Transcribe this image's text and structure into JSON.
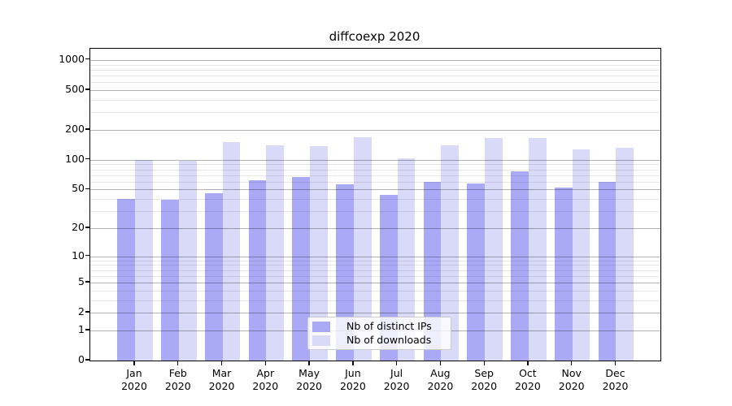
{
  "chart_data": {
    "type": "bar",
    "title": "diffcoexp 2020",
    "x_year": "2020",
    "categories": [
      "Jan",
      "Feb",
      "Mar",
      "Apr",
      "May",
      "Jun",
      "Jul",
      "Aug",
      "Sep",
      "Oct",
      "Nov",
      "Dec"
    ],
    "series": [
      {
        "name": "Nb of distinct IPs",
        "color": "#a9a9f5",
        "values": [
          40,
          39,
          46,
          62,
          67,
          56,
          44,
          60,
          58,
          77,
          52,
          60
        ]
      },
      {
        "name": "Nb of downloads",
        "color": "#d9d9f8",
        "values": [
          100,
          97,
          150,
          140,
          137,
          170,
          104,
          139,
          167,
          164,
          128,
          131
        ]
      }
    ],
    "y_axis": {
      "scale": "log10(1+x)",
      "ticks": [
        0,
        1,
        2,
        5,
        10,
        20,
        50,
        100,
        200,
        500,
        1000
      ],
      "minor_ticks": [
        3,
        4,
        6,
        7,
        8,
        9,
        30,
        40,
        60,
        70,
        80,
        90,
        300,
        400,
        600,
        700,
        800,
        900
      ],
      "top_value": 1290
    },
    "legend": {
      "position": "inside-bottom-center"
    },
    "colors": {
      "bar_distinct_ips": "#a9a9f5",
      "bar_downloads": "#d9d9f8",
      "grid_major": "rgba(0,0,0,0.30)",
      "grid_minor": "rgba(0,0,0,0.09)",
      "axis": "#000000",
      "background": "#ffffff"
    }
  }
}
